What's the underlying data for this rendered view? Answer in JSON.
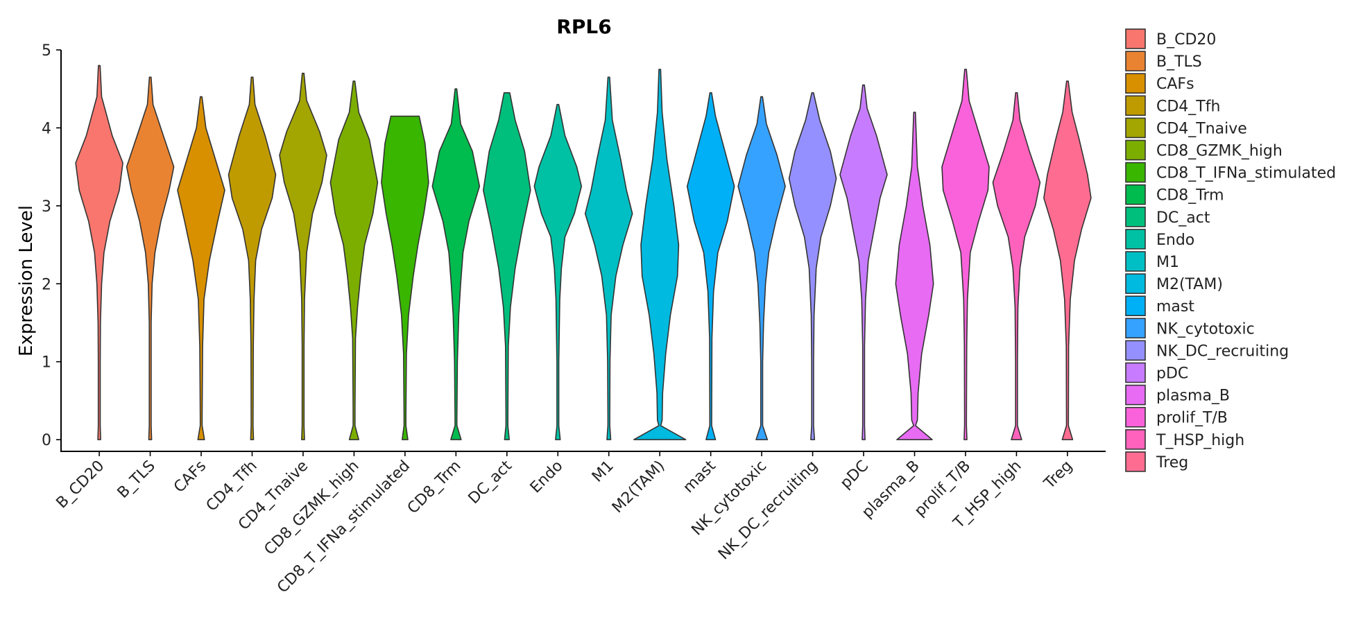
{
  "chart_data": {
    "type": "violin",
    "title": "RPL6",
    "xlabel": "",
    "ylabel": "Expression Level",
    "ylim": [
      -0.15,
      5.0
    ],
    "yticks": [
      0,
      1,
      2,
      3,
      4,
      5
    ],
    "legend_position": "right",
    "categories": [
      "B_CD20",
      "B_TLS",
      "CAFs",
      "CD4_Tfh",
      "CD4_Tnaive",
      "CD8_GZMK_high",
      "CD8_T_IFNa_stimulated",
      "CD8_Trm",
      "DC_act",
      "Endo",
      "M1",
      "M2(TAM)",
      "mast",
      "NK_cytotoxic",
      "NK_DC_recruiting",
      "pDC",
      "plasma_B",
      "prolif_T/B",
      "T_HSP_high",
      "Treg"
    ],
    "colors": [
      "#F8766D",
      "#EA8331",
      "#D89000",
      "#C09B00",
      "#A3A500",
      "#7CAE00",
      "#39B600",
      "#00BB4E",
      "#00BF7D",
      "#00C1A3",
      "#00BFC4",
      "#00BAE0",
      "#00B0F6",
      "#35A2FF",
      "#9590FF",
      "#C77CFF",
      "#E76BF3",
      "#FA62DB",
      "#FF62BC",
      "#FF6C91"
    ],
    "violins": [
      {
        "name": "B_CD20",
        "max": 4.8,
        "zero_w": 0.06,
        "profile": [
          [
            4.8,
            0.02
          ],
          [
            4.4,
            0.1
          ],
          [
            3.9,
            0.55
          ],
          [
            3.55,
            1.0
          ],
          [
            3.2,
            0.85
          ],
          [
            2.8,
            0.45
          ],
          [
            2.4,
            0.2
          ],
          [
            2.0,
            0.1
          ],
          [
            1.5,
            0.05
          ],
          [
            1.0,
            0.04
          ],
          [
            0.3,
            0.04
          ]
        ]
      },
      {
        "name": "B_TLS",
        "max": 4.65,
        "zero_w": 0.06,
        "profile": [
          [
            4.65,
            0.02
          ],
          [
            4.3,
            0.12
          ],
          [
            3.95,
            0.5
          ],
          [
            3.5,
            1.0
          ],
          [
            3.2,
            0.8
          ],
          [
            2.8,
            0.45
          ],
          [
            2.4,
            0.2
          ],
          [
            2.0,
            0.08
          ],
          [
            1.5,
            0.04
          ],
          [
            0.5,
            0.04
          ]
        ]
      },
      {
        "name": "CAFs",
        "max": 4.4,
        "zero_w": 0.14,
        "profile": [
          [
            4.4,
            0.02
          ],
          [
            4.0,
            0.2
          ],
          [
            3.6,
            0.6
          ],
          [
            3.2,
            1.0
          ],
          [
            2.8,
            0.7
          ],
          [
            2.3,
            0.35
          ],
          [
            1.8,
            0.12
          ],
          [
            1.2,
            0.06
          ],
          [
            0.3,
            0.04
          ]
        ]
      },
      {
        "name": "CD4_Tfh",
        "max": 4.65,
        "zero_w": 0.06,
        "profile": [
          [
            4.65,
            0.02
          ],
          [
            4.3,
            0.12
          ],
          [
            3.9,
            0.55
          ],
          [
            3.4,
            1.0
          ],
          [
            3.1,
            0.85
          ],
          [
            2.7,
            0.4
          ],
          [
            2.3,
            0.15
          ],
          [
            1.8,
            0.08
          ],
          [
            1.2,
            0.05
          ],
          [
            0.3,
            0.04
          ]
        ]
      },
      {
        "name": "CD4_Tnaive",
        "max": 4.7,
        "zero_w": 0.06,
        "profile": [
          [
            4.7,
            0.02
          ],
          [
            4.35,
            0.15
          ],
          [
            3.95,
            0.7
          ],
          [
            3.65,
            1.0
          ],
          [
            3.3,
            0.8
          ],
          [
            2.9,
            0.4
          ],
          [
            2.4,
            0.15
          ],
          [
            1.8,
            0.06
          ],
          [
            1.2,
            0.04
          ],
          [
            0.3,
            0.04
          ]
        ]
      },
      {
        "name": "CD8_GZMK_high",
        "max": 4.6,
        "zero_w": 0.2,
        "profile": [
          [
            4.6,
            0.02
          ],
          [
            4.2,
            0.2
          ],
          [
            3.85,
            0.65
          ],
          [
            3.3,
            1.0
          ],
          [
            2.9,
            0.8
          ],
          [
            2.5,
            0.45
          ],
          [
            2.1,
            0.28
          ],
          [
            1.7,
            0.15
          ],
          [
            1.3,
            0.06
          ],
          [
            0.4,
            0.04
          ]
        ]
      },
      {
        "name": "CD8_T_IFNa_stimulated",
        "max": 4.15,
        "zero_w": 0.12,
        "profile": [
          [
            4.15,
            0.6
          ],
          [
            3.8,
            0.85
          ],
          [
            3.3,
            1.0
          ],
          [
            2.9,
            0.8
          ],
          [
            2.5,
            0.55
          ],
          [
            2.1,
            0.35
          ],
          [
            1.6,
            0.15
          ],
          [
            1.1,
            0.06
          ],
          [
            0.3,
            0.04
          ]
        ]
      },
      {
        "name": "CD8_Trm",
        "max": 4.5,
        "zero_w": 0.22,
        "profile": [
          [
            4.5,
            0.02
          ],
          [
            4.05,
            0.2
          ],
          [
            3.7,
            0.7
          ],
          [
            3.25,
            1.0
          ],
          [
            2.8,
            0.55
          ],
          [
            2.4,
            0.3
          ],
          [
            2.0,
            0.2
          ],
          [
            1.6,
            0.12
          ],
          [
            1.0,
            0.06
          ],
          [
            0.3,
            0.04
          ]
        ]
      },
      {
        "name": "DC_act",
        "max": 4.45,
        "zero_w": 0.1,
        "profile": [
          [
            4.45,
            0.12
          ],
          [
            4.1,
            0.35
          ],
          [
            3.7,
            0.75
          ],
          [
            3.2,
            1.0
          ],
          [
            2.7,
            0.65
          ],
          [
            2.2,
            0.35
          ],
          [
            1.7,
            0.15
          ],
          [
            1.2,
            0.06
          ],
          [
            0.3,
            0.04
          ]
        ]
      },
      {
        "name": "Endo",
        "max": 4.3,
        "zero_w": 0.1,
        "profile": [
          [
            4.3,
            0.02
          ],
          [
            3.9,
            0.3
          ],
          [
            3.5,
            0.8
          ],
          [
            3.25,
            1.0
          ],
          [
            2.9,
            0.7
          ],
          [
            2.6,
            0.3
          ],
          [
            2.2,
            0.15
          ],
          [
            1.8,
            0.08
          ],
          [
            1.0,
            0.04
          ],
          [
            0.3,
            0.04
          ]
        ]
      },
      {
        "name": "M1",
        "max": 4.65,
        "zero_w": 0.08,
        "profile": [
          [
            4.65,
            0.02
          ],
          [
            4.1,
            0.15
          ],
          [
            3.6,
            0.5
          ],
          [
            3.2,
            0.75
          ],
          [
            2.9,
            1.0
          ],
          [
            2.5,
            0.6
          ],
          [
            2.1,
            0.3
          ],
          [
            1.6,
            0.1
          ],
          [
            1.0,
            0.05
          ],
          [
            0.3,
            0.04
          ]
        ]
      },
      {
        "name": "M2(TAM)",
        "max": 4.75,
        "zero_w": 1.1,
        "profile": [
          [
            4.75,
            0.02
          ],
          [
            4.2,
            0.1
          ],
          [
            3.6,
            0.3
          ],
          [
            3.0,
            0.6
          ],
          [
            2.5,
            0.8
          ],
          [
            2.1,
            0.75
          ],
          [
            1.6,
            0.45
          ],
          [
            1.1,
            0.25
          ],
          [
            0.6,
            0.12
          ],
          [
            0.25,
            0.1
          ]
        ]
      },
      {
        "name": "mast",
        "max": 4.45,
        "zero_w": 0.2,
        "profile": [
          [
            4.45,
            0.02
          ],
          [
            4.15,
            0.2
          ],
          [
            3.7,
            0.6
          ],
          [
            3.25,
            1.0
          ],
          [
            2.8,
            0.7
          ],
          [
            2.4,
            0.3
          ],
          [
            1.9,
            0.12
          ],
          [
            1.3,
            0.05
          ],
          [
            0.3,
            0.04
          ]
        ]
      },
      {
        "name": "NK_cytotoxic",
        "max": 4.4,
        "zero_w": 0.24,
        "profile": [
          [
            4.4,
            0.02
          ],
          [
            4.05,
            0.2
          ],
          [
            3.65,
            0.65
          ],
          [
            3.25,
            1.0
          ],
          [
            2.8,
            0.6
          ],
          [
            2.4,
            0.3
          ],
          [
            2.0,
            0.16
          ],
          [
            1.5,
            0.08
          ],
          [
            1.0,
            0.04
          ],
          [
            0.3,
            0.04
          ]
        ]
      },
      {
        "name": "NK_DC_recruiting",
        "max": 4.45,
        "zero_w": 0.08,
        "profile": [
          [
            4.45,
            0.02
          ],
          [
            4.1,
            0.3
          ],
          [
            3.7,
            0.75
          ],
          [
            3.35,
            1.0
          ],
          [
            3.0,
            0.75
          ],
          [
            2.6,
            0.35
          ],
          [
            2.2,
            0.15
          ],
          [
            1.6,
            0.06
          ],
          [
            1.0,
            0.04
          ],
          [
            0.3,
            0.04
          ]
        ]
      },
      {
        "name": "pDC",
        "max": 4.55,
        "zero_w": 0.06,
        "profile": [
          [
            4.55,
            0.02
          ],
          [
            4.25,
            0.15
          ],
          [
            3.9,
            0.55
          ],
          [
            3.4,
            1.0
          ],
          [
            3.1,
            0.7
          ],
          [
            2.7,
            0.45
          ],
          [
            2.3,
            0.2
          ],
          [
            1.8,
            0.08
          ],
          [
            1.2,
            0.04
          ],
          [
            0.3,
            0.04
          ]
        ]
      },
      {
        "name": "plasma_B",
        "max": 4.2,
        "zero_w": 0.75,
        "profile": [
          [
            4.2,
            0.02
          ],
          [
            3.5,
            0.12
          ],
          [
            3.0,
            0.35
          ],
          [
            2.5,
            0.65
          ],
          [
            2.0,
            0.8
          ],
          [
            1.6,
            0.6
          ],
          [
            1.1,
            0.3
          ],
          [
            0.6,
            0.15
          ],
          [
            0.25,
            0.12
          ]
        ]
      },
      {
        "name": "prolif_T/B",
        "max": 4.75,
        "zero_w": 0.06,
        "profile": [
          [
            4.75,
            0.02
          ],
          [
            4.35,
            0.15
          ],
          [
            3.95,
            0.55
          ],
          [
            3.5,
            1.0
          ],
          [
            3.2,
            0.95
          ],
          [
            2.8,
            0.55
          ],
          [
            2.4,
            0.2
          ],
          [
            1.8,
            0.08
          ],
          [
            1.2,
            0.05
          ],
          [
            0.3,
            0.04
          ]
        ]
      },
      {
        "name": "T_HSP_high",
        "max": 4.45,
        "zero_w": 0.22,
        "profile": [
          [
            4.45,
            0.02
          ],
          [
            4.1,
            0.15
          ],
          [
            3.7,
            0.55
          ],
          [
            3.3,
            1.0
          ],
          [
            3.0,
            0.8
          ],
          [
            2.6,
            0.35
          ],
          [
            2.2,
            0.15
          ],
          [
            1.7,
            0.06
          ],
          [
            1.0,
            0.04
          ],
          [
            0.3,
            0.04
          ]
        ]
      },
      {
        "name": "Treg",
        "max": 4.6,
        "zero_w": 0.22,
        "profile": [
          [
            4.6,
            0.02
          ],
          [
            4.2,
            0.2
          ],
          [
            3.85,
            0.5
          ],
          [
            3.4,
            0.85
          ],
          [
            3.1,
            1.0
          ],
          [
            2.7,
            0.6
          ],
          [
            2.3,
            0.3
          ],
          [
            1.8,
            0.12
          ],
          [
            1.2,
            0.05
          ],
          [
            0.3,
            0.04
          ]
        ]
      }
    ]
  }
}
